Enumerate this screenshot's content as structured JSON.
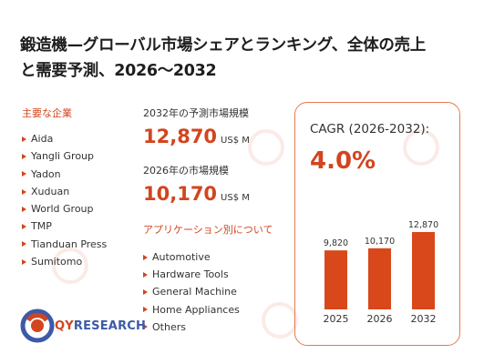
{
  "title": {
    "line1": "鍛造機—グローバル市場シェアとランキング、全体の売上",
    "line2": "と需要予測、2026～2032"
  },
  "companies": {
    "heading": "主要な企業",
    "items": [
      "Aida",
      "Yangli Group",
      "Yadon",
      "Xuduan",
      "World Group",
      "TMP",
      "Tianduan Press",
      "Sumitomo"
    ]
  },
  "stats": {
    "y2032_label": "2032年の予測市場規模",
    "y2032_value": "12,870",
    "y2032_unit": "US$ M",
    "y2026_label": "2026年の市場規模",
    "y2026_value": "10,170",
    "y2026_unit": "US$ M"
  },
  "applications": {
    "heading": "アプリケーション別について",
    "items": [
      "Automotive",
      "Hardware Tools",
      "General Machine",
      "Home Appliances",
      "Others"
    ]
  },
  "cagr": {
    "label": "CAGR (2026-2032):",
    "value": "4.0%"
  },
  "logo": {
    "text_prefix": "QY",
    "text_suffix": "RESEARCH",
    "watermark": "QYRESEARCH"
  },
  "colors": {
    "accent": "#d2451e",
    "bar": "#d9481a",
    "card_border": "#e8794f",
    "logo_blue": "#3d5aa8"
  },
  "chart_data": {
    "type": "bar",
    "categories": [
      "2025",
      "2026",
      "2032"
    ],
    "values": [
      9820,
      10170,
      12870
    ],
    "value_labels": [
      "9,820",
      "10,170",
      "12,870"
    ],
    "title": "",
    "xlabel": "",
    "ylabel": "",
    "ylim": [
      0,
      12870
    ],
    "grid": false,
    "legend": "none"
  }
}
